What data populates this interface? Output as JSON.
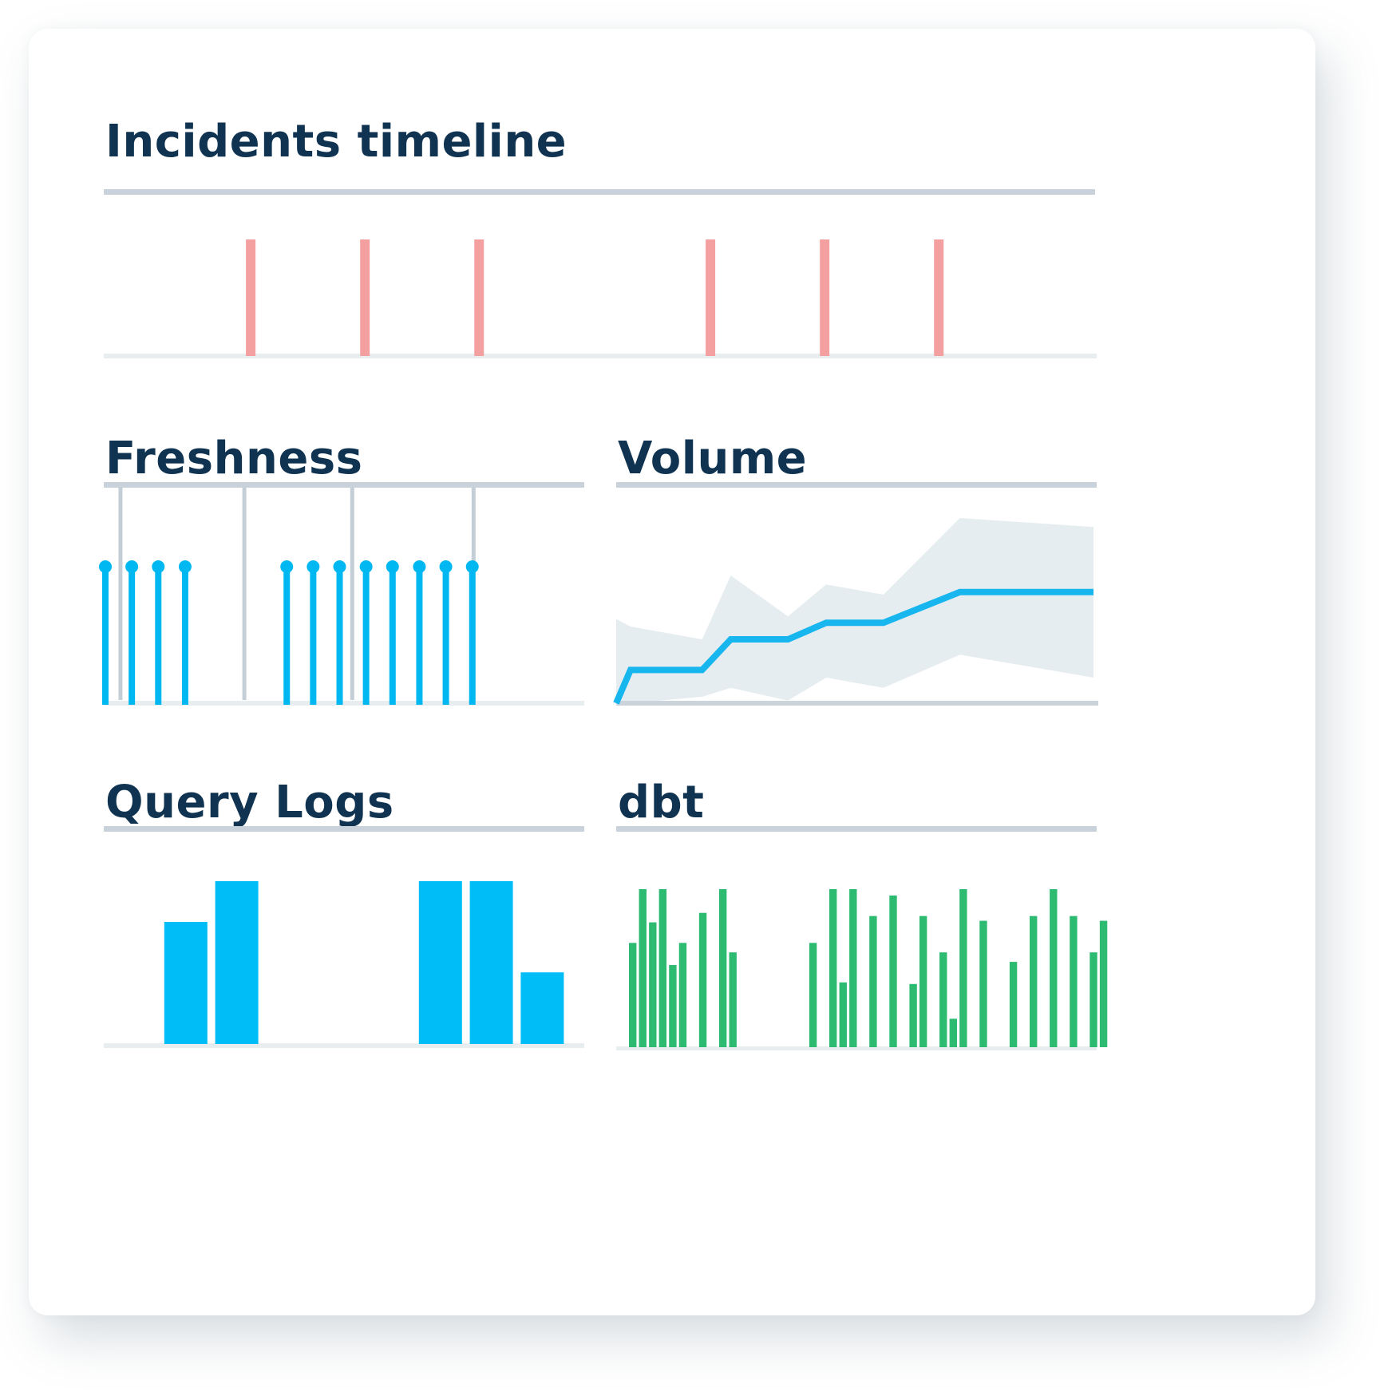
{
  "colors": {
    "title": "#0f3350",
    "header_rule": "#c9d1da",
    "baseline": "#e8edf0",
    "incident": "#f5a0a0",
    "freshness_marker": "#c4ced6",
    "freshness_event": "#00b8f1",
    "volume_band": "#e6edf0",
    "volume_line": "#17b6ee",
    "query_bar": "#00bdf7",
    "dbt_bar": "#2dbb72"
  },
  "panels": {
    "incidents": {
      "title": "Incidents timeline",
      "chart_data": {
        "type": "bar",
        "description_free": true,
        "x": [
          0.148,
          0.263,
          0.378,
          0.611,
          0.726,
          0.841
        ],
        "values": [
          1,
          1,
          1,
          1,
          1,
          1
        ],
        "xlim": [
          0,
          1
        ],
        "ylim": [
          0,
          1
        ]
      }
    },
    "freshness": {
      "title": "Freshness",
      "chart_data": {
        "type": "scatter",
        "markers_x": [
          0.036,
          0.331,
          0.588,
          0.877
        ],
        "events_x": [
          0.0,
          0.063,
          0.126,
          0.19,
          0.432,
          0.495,
          0.558,
          0.621,
          0.684,
          0.748,
          0.811,
          0.874
        ],
        "event_height": 1,
        "xlim": [
          0,
          1
        ],
        "ylim": [
          0,
          1
        ]
      }
    },
    "volume": {
      "title": "Volume",
      "chart_data": {
        "type": "area",
        "x": [
          0,
          0.03,
          0.18,
          0.24,
          0.36,
          0.44,
          0.56,
          0.72,
          1.0
        ],
        "line": [
          0.0,
          0.26,
          0.26,
          0.5,
          0.5,
          0.63,
          0.63,
          0.87,
          0.87
        ],
        "band_upper": [
          0.66,
          0.6,
          0.5,
          1.0,
          0.68,
          0.93,
          0.85,
          1.45,
          1.38
        ],
        "band_lower": [
          0.0,
          0.0,
          0.05,
          0.12,
          0.02,
          0.2,
          0.12,
          0.38,
          0.2
        ],
        "xlim": [
          0,
          1
        ],
        "ylim": [
          0,
          1.5
        ]
      }
    },
    "query_logs": {
      "title": "Query Logs",
      "chart_data": {
        "type": "bar",
        "categories": [
          "1",
          "2",
          "3",
          "4",
          "5",
          "6",
          "7",
          "8",
          "9"
        ],
        "values": [
          0,
          0.75,
          1.0,
          0,
          0,
          0,
          1.0,
          1.0,
          0.44
        ],
        "ylim": [
          0,
          1
        ]
      }
    },
    "dbt": {
      "title": "dbt",
      "chart_data": {
        "type": "bar",
        "values": [
          0.66,
          1.0,
          0.79,
          1.0,
          0.52,
          0.66,
          0,
          0.85,
          0,
          1.0,
          0.6,
          0,
          0,
          0,
          0,
          0,
          0,
          0,
          0.66,
          0,
          1.0,
          0.41,
          1.0,
          0,
          0.83,
          0,
          0.96,
          0,
          0.4,
          0.83,
          0,
          0.6,
          0.18,
          1.0,
          0,
          0.8,
          0,
          0,
          0.54,
          0,
          0.83,
          0,
          1.0,
          0,
          0.83,
          0,
          0.6,
          0.8
        ],
        "ylim": [
          0,
          1
        ]
      }
    }
  }
}
